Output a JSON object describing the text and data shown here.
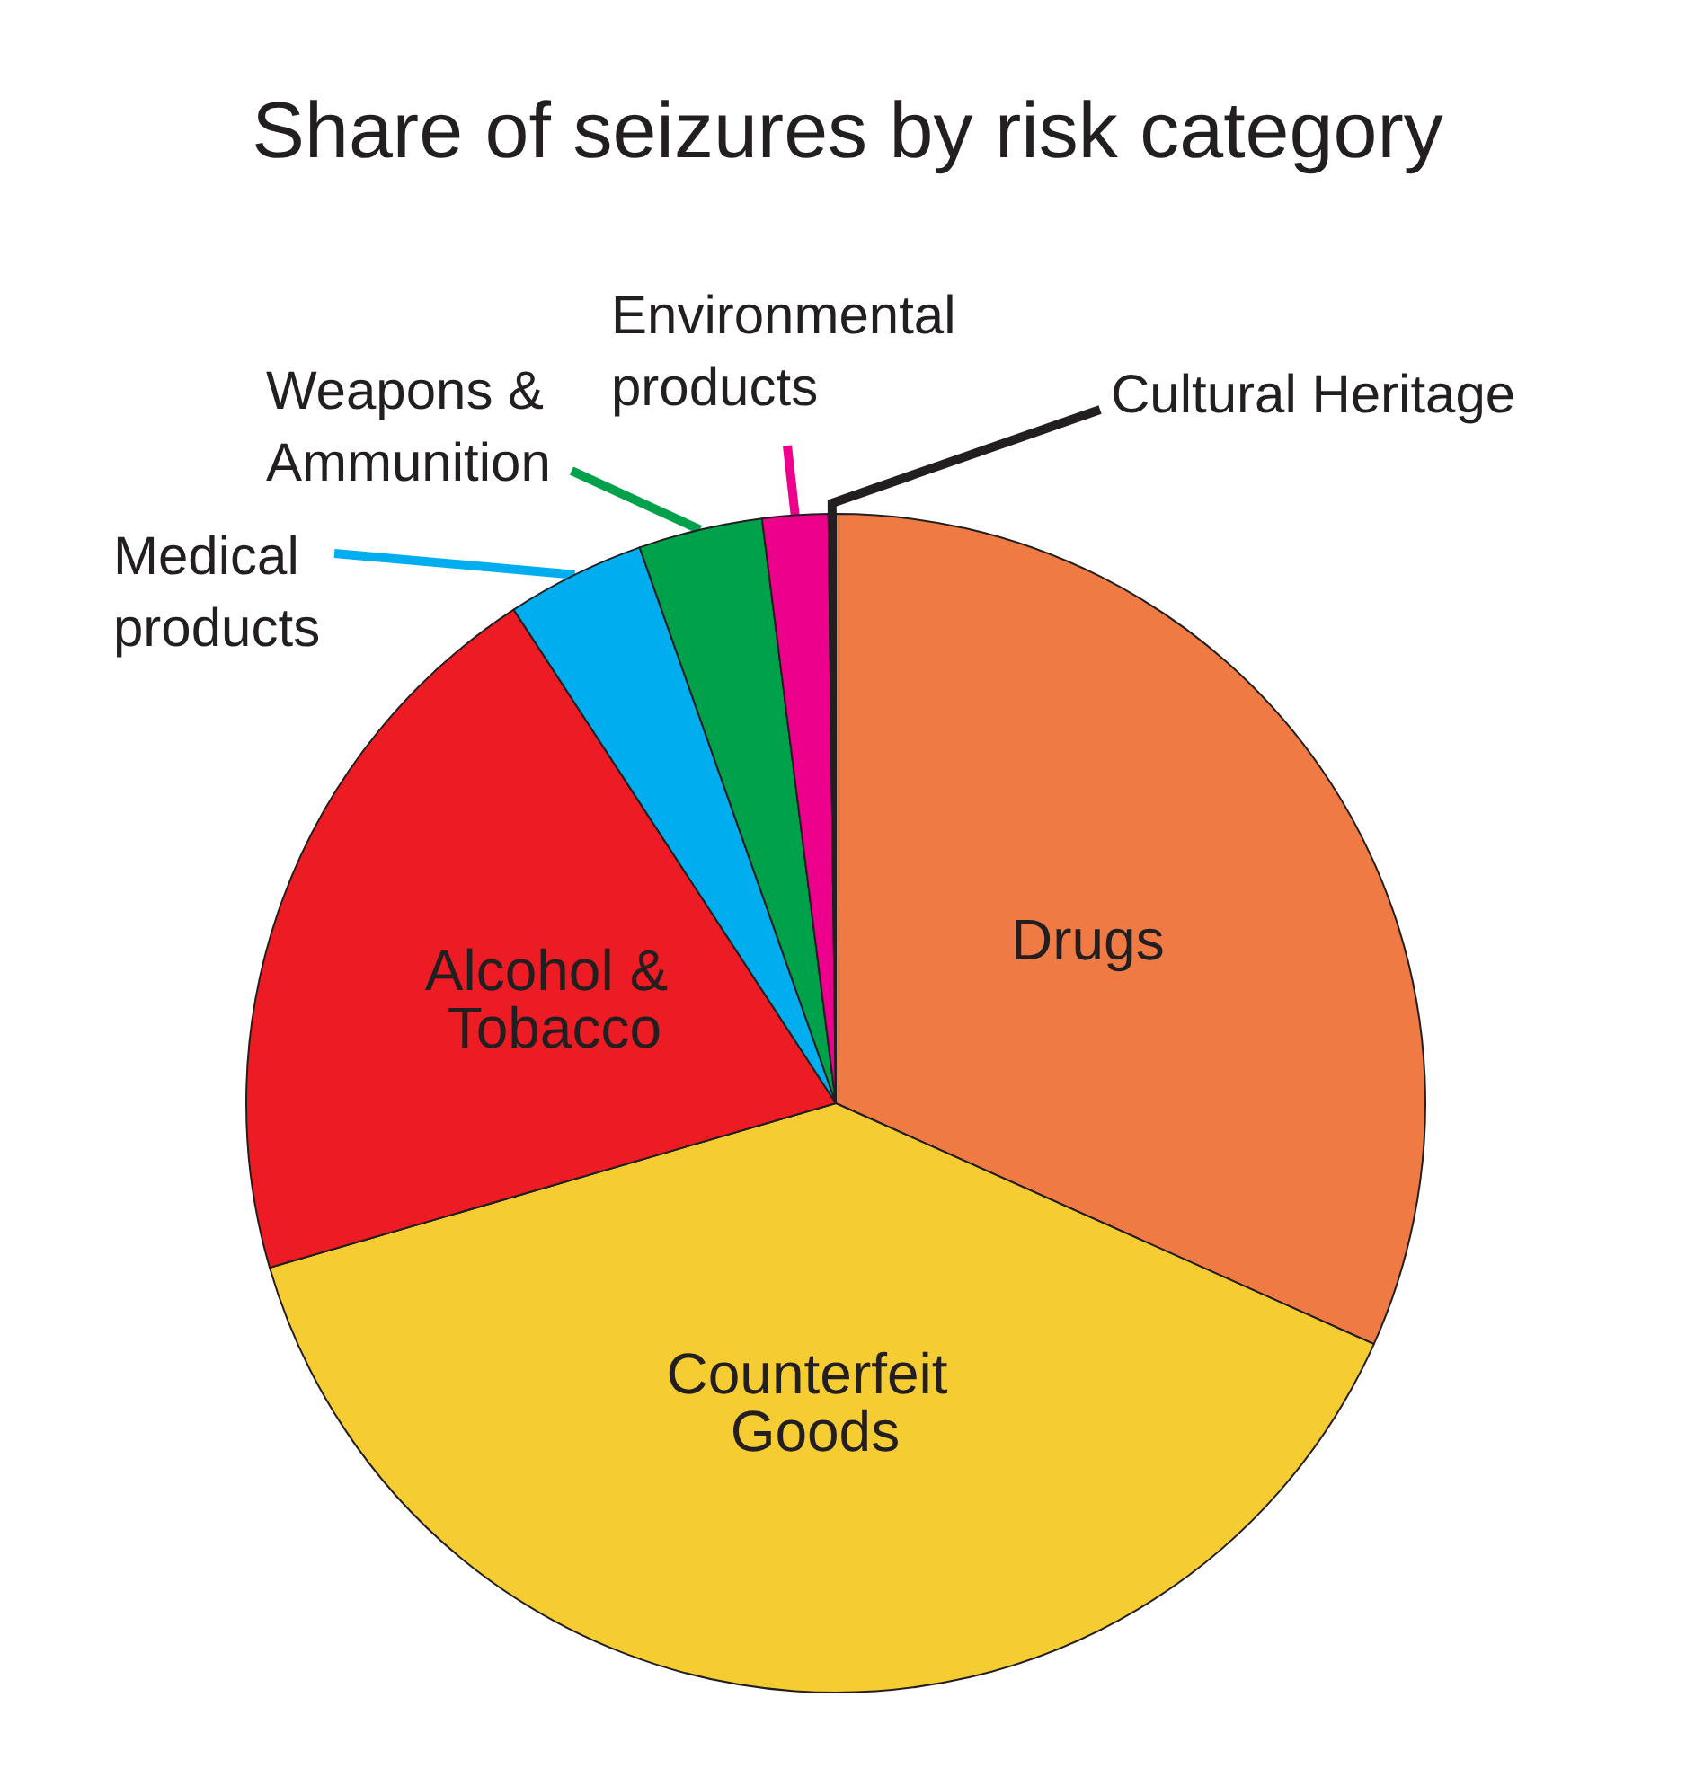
{
  "chart_data": {
    "type": "pie",
    "title": "Share of seizures by risk category",
    "categories": [
      "Drugs",
      "Counterfeit Goods",
      "Alcohol & Tobacco",
      "Medical products",
      "Weapons & Ammunition",
      "Environmental products",
      "Cultural Heritage"
    ],
    "values": [
      31.7,
      38.8,
      20.3,
      3.8,
      3.4,
      1.8,
      0.2
    ],
    "colors": [
      "#f07a43",
      "#f5cd32",
      "#ed1c24",
      "#00aeef",
      "#00a14b",
      "#ec008c",
      "#231f20"
    ],
    "legend": false
  }
}
